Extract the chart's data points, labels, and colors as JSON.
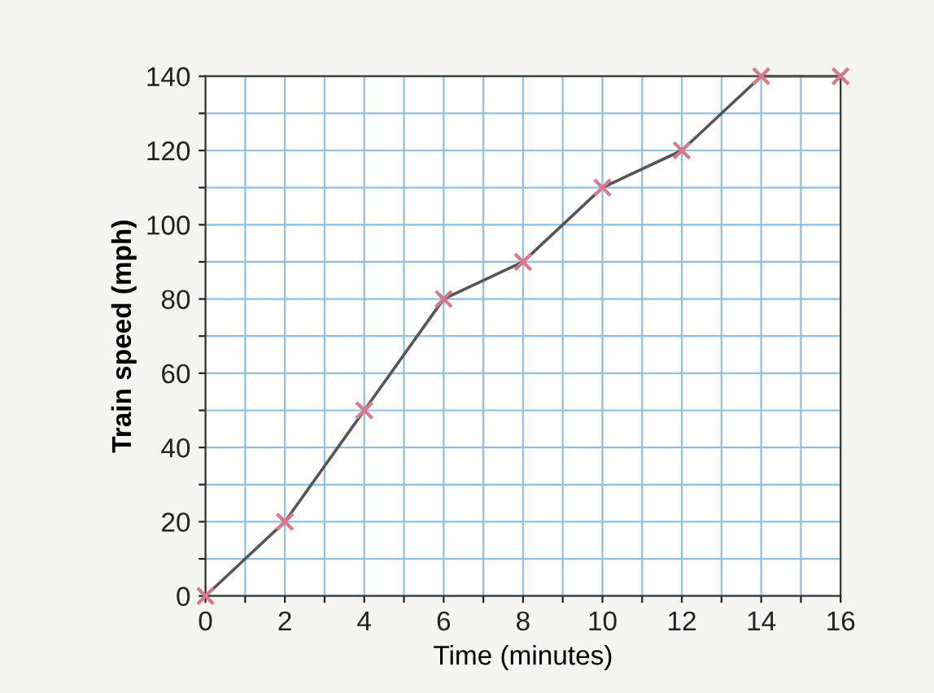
{
  "chart_data": {
    "type": "line",
    "xlabel": "Time (minutes)",
    "ylabel": "Train speed (mph)",
    "x": [
      0,
      2,
      4,
      6,
      8,
      10,
      12,
      14,
      16
    ],
    "series": [
      {
        "color": "#555555",
        "values": [
          0,
          20,
          50,
          80,
          90,
          110,
          120,
          140,
          140
        ]
      }
    ],
    "marker": "cross",
    "line_style": "solid",
    "grid": true,
    "xlim": [
      0,
      16
    ],
    "ylim": [
      0,
      140
    ],
    "xticks": [
      0,
      {
        "value": 1,
        "label": null
      },
      2,
      {
        "value": 3,
        "label": null
      },
      4,
      {
        "value": 5,
        "label": null
      },
      6,
      {
        "value": 7,
        "label": null
      },
      8,
      {
        "value": 9,
        "label": null
      },
      10,
      {
        "value": 11,
        "label": null
      },
      12,
      {
        "value": 13,
        "label": null
      },
      14,
      {
        "value": 15,
        "label": null
      },
      16
    ],
    "yticks": [
      0,
      {
        "value": 10,
        "label": null
      },
      20,
      {
        "value": 30,
        "label": null
      },
      40,
      {
        "value": 50,
        "label": null
      },
      60,
      {
        "value": 70,
        "label": null
      },
      80,
      {
        "value": 90,
        "label": null
      },
      100,
      {
        "value": 110,
        "label": null
      },
      120,
      {
        "value": 130,
        "label": null
      },
      140
    ]
  }
}
